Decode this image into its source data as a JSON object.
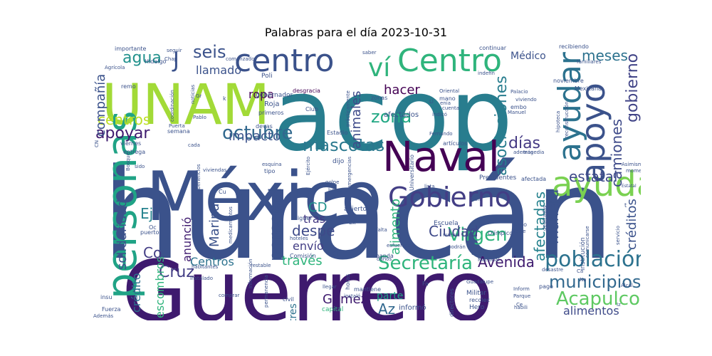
{
  "chart_data": {
    "type": "wordcloud",
    "title": "Palabras para el día 2023-10-31",
    "colormap": "viridis",
    "background": "#ffffff",
    "words": [
      {
        "text": "huracán",
        "weight": 1.0,
        "color": "#3b528b"
      },
      {
        "text": "acop",
        "weight": 0.85,
        "color": "#287d8e"
      },
      {
        "text": "Guerrero",
        "weight": 0.8,
        "color": "#3e1a6e"
      },
      {
        "text": "México",
        "weight": 0.72,
        "color": "#3b528b"
      },
      {
        "text": "UNAM",
        "weight": 0.7,
        "color": "#a2da37"
      },
      {
        "text": "personas",
        "weight": 0.55,
        "color": "#20a386"
      },
      {
        "text": "Naval",
        "weight": 0.5,
        "color": "#440154"
      },
      {
        "text": "centro",
        "weight": 0.48,
        "color": "#3b528b"
      },
      {
        "text": "Centro",
        "weight": 0.48,
        "color": "#2fb47c"
      },
      {
        "text": "ayuda",
        "weight": 0.46,
        "color": "#7ad151"
      },
      {
        "text": "ayudar",
        "weight": 0.44,
        "color": "#2c728e"
      },
      {
        "text": "apoyo",
        "weight": 0.42,
        "color": "#3b528b"
      },
      {
        "text": "Gobierno",
        "weight": 0.38,
        "color": "#433e85"
      },
      {
        "text": "ví",
        "weight": 0.36,
        "color": "#2fb47c"
      },
      {
        "text": "población",
        "weight": 0.3,
        "color": "#2c728e"
      },
      {
        "text": "Acapulco",
        "weight": 0.28,
        "color": "#5ec962"
      },
      {
        "text": "municipios",
        "weight": 0.26,
        "color": "#31688e"
      },
      {
        "text": "Secretaría",
        "weight": 0.25,
        "color": "#2fb47c"
      },
      {
        "text": "zona",
        "weight": 0.25,
        "color": "#22a884"
      },
      {
        "text": "asociaciones",
        "weight": 0.23,
        "color": "#287d8e"
      },
      {
        "text": "mascotas",
        "weight": 0.25,
        "color": "#2a788e"
      },
      {
        "text": "octubre",
        "weight": 0.24,
        "color": "#31688e"
      },
      {
        "text": "Virgen",
        "weight": 0.24,
        "color": "#2fb47c"
      },
      {
        "text": "personal",
        "weight": 0.23,
        "color": "#3b528b"
      },
      {
        "text": "gobierno",
        "weight": 0.22,
        "color": "#414487"
      },
      {
        "text": "agua",
        "weight": 0.22,
        "color": "#21918c"
      },
      {
        "text": "seis",
        "weight": 0.2,
        "color": "#3b528b"
      },
      {
        "text": "días",
        "weight": 0.2,
        "color": "#443983"
      },
      {
        "text": "apoyar",
        "weight": 0.2,
        "color": "#3e1a6e"
      },
      {
        "text": "afectadas",
        "weight": 0.2,
        "color": "#26828e"
      },
      {
        "text": "estatal",
        "weight": 0.19,
        "color": "#3e4a89"
      },
      {
        "text": "Ciudad",
        "weight": 0.19,
        "color": "#3e4989"
      },
      {
        "text": "Cruz",
        "weight": 0.19,
        "color": "#433e85"
      },
      {
        "text": "impacto",
        "weight": 0.18,
        "color": "#3b528b"
      },
      {
        "text": "camiones",
        "weight": 0.18,
        "color": "#3e4a89"
      },
      {
        "text": "Avenida",
        "weight": 0.18,
        "color": "#3e1a6e"
      },
      {
        "text": "centros",
        "weight": 0.18,
        "color": "#bddf26"
      },
      {
        "text": "manera",
        "weight": 0.18,
        "color": "#3b528b"
      },
      {
        "text": "alimento",
        "weight": 0.17,
        "color": "#2fb47c"
      },
      {
        "text": "toneladas",
        "weight": 0.17,
        "color": "#3b528b"
      },
      {
        "text": "hacer",
        "weight": 0.17,
        "color": "#440154"
      },
      {
        "text": "meses",
        "weight": 0.17,
        "color": "#2c728e"
      },
      {
        "text": "despe",
        "weight": 0.17,
        "color": "#3e4a89"
      },
      {
        "text": "Gómez",
        "weight": 0.16,
        "color": "#3e1a6e"
      },
      {
        "text": "Az",
        "weight": 0.16,
        "color": "#31688e"
      },
      {
        "text": "compañía",
        "weight": 0.15,
        "color": "#3b528b"
      },
      {
        "text": "Marina",
        "weight": 0.15,
        "color": "#3b528b"
      },
      {
        "text": "solidaridad",
        "weight": 0.15,
        "color": "#3b528b"
      },
      {
        "text": "créditos",
        "weight": 0.15,
        "color": "#3b528b"
      },
      {
        "text": "animales",
        "weight": 0.15,
        "color": "#3e4a89"
      },
      {
        "text": "alimentos",
        "weight": 0.15,
        "color": "#3e4a89"
      },
      {
        "text": "través",
        "weight": 0.15,
        "color": "#2fb47c"
      },
      {
        "text": "crédito",
        "weight": 0.14,
        "color": "#2c728e"
      },
      {
        "text": "escombros",
        "weight": 0.14,
        "color": "#2fb47c"
      },
      {
        "text": "Centros",
        "weight": 0.14,
        "color": "#2c728e"
      },
      {
        "text": "envío",
        "weight": 0.14,
        "color": "#433e85"
      },
      {
        "text": "tras",
        "weight": 0.14,
        "color": "#443983"
      },
      {
        "text": "ropa",
        "weight": 0.14,
        "color": "#440154"
      },
      {
        "text": "llamado",
        "weight": 0.14,
        "color": "#3b528b"
      },
      {
        "text": "anunció",
        "weight": 0.13,
        "color": "#3e1a6e"
      },
      {
        "text": "Médico",
        "weight": 0.12,
        "color": "#3b528b"
      },
      {
        "text": "tres",
        "weight": 0.12,
        "color": "#2c728e"
      },
      {
        "text": "parte",
        "weight": 0.12,
        "color": "#20a386"
      },
      {
        "text": "CD",
        "weight": 0.15,
        "color": "#21918c"
      },
      {
        "text": "Co",
        "weight": 0.16,
        "color": "#433e85"
      },
      {
        "text": "Ej",
        "weight": 0.15,
        "color": "#26828e"
      },
      {
        "text": "J",
        "weight": 0.22,
        "color": "#3b528b"
      },
      {
        "text": "institución",
        "weight": 0.1,
        "color": "#3b528b"
      },
      {
        "text": "Mexicana",
        "weight": 0.08,
        "color": "#3b528b"
      },
      {
        "text": "noviembre",
        "weight": 0.08,
        "color": "#3b528b"
      },
      {
        "text": "afectados",
        "weight": 0.08,
        "color": "#3b528b"
      },
      {
        "text": "Poli",
        "weight": 0.08,
        "color": "#3b528b"
      },
      {
        "text": "Roja",
        "weight": 0.08,
        "color": "#3b528b"
      },
      {
        "text": "gobernador",
        "weight": 0.07,
        "color": "#3b528b"
      },
      {
        "text": "desgracia",
        "weight": 0.07,
        "color": "#440154"
      },
      {
        "text": "primeros",
        "weight": 0.07,
        "color": "#3b528b"
      },
      {
        "text": "Estadio",
        "weight": 0.07,
        "color": "#3b528b"
      },
      {
        "text": "semana",
        "weight": 0.07,
        "color": "#3b528b"
      },
      {
        "text": "importante",
        "weight": 0.07,
        "color": "#3b528b"
      },
      {
        "text": "Hidalgo",
        "weight": 0.06,
        "color": "#3b528b"
      },
      {
        "text": "dijo",
        "weight": 0.07,
        "color": "#3b528b"
      },
      {
        "text": "tipo",
        "weight": 0.07,
        "color": "#3b528b"
      },
      {
        "text": "viviendas",
        "weight": 0.06,
        "color": "#3b528b"
      },
      {
        "text": "entrega",
        "weight": 0.06,
        "color": "#3b528b"
      },
      {
        "text": "viernes",
        "weight": 0.07,
        "color": "#3b528b"
      },
      {
        "text": "puerto",
        "weight": 0.06,
        "color": "#3b528b"
      },
      {
        "text": "Escuela",
        "weight": 0.07,
        "color": "#3b528b"
      },
      {
        "text": "abierto",
        "weight": 0.07,
        "color": "#3b528b"
      },
      {
        "text": "Presidentes",
        "weight": 0.07,
        "color": "#3b528b"
      },
      {
        "text": "Comisión",
        "weight": 0.06,
        "color": "#3b528b"
      },
      {
        "text": "manda",
        "weight": 0.06,
        "color": "#3b528b"
      },
      {
        "text": "mantiene",
        "weight": 0.06,
        "color": "#3b528b"
      },
      {
        "text": "informó",
        "weight": 0.07,
        "color": "#3b528b"
      },
      {
        "text": "capital",
        "weight": 0.06,
        "color": "#2fb47c"
      },
      {
        "text": "Militar",
        "weight": 0.06,
        "color": "#3b528b"
      },
      {
        "text": "Hero",
        "weight": 0.06,
        "color": "#3b528b"
      },
      {
        "text": "civil",
        "weight": 0.06,
        "color": "#3b528b"
      },
      {
        "text": "pago",
        "weight": 0.06,
        "color": "#3b528b"
      },
      {
        "text": "desastre",
        "weight": 0.06,
        "color": "#3b528b"
      },
      {
        "text": "paso",
        "weight": 0.06,
        "color": "#3b528b"
      },
      {
        "text": "embo",
        "weight": 0.06,
        "color": "#3b528b"
      },
      {
        "text": "tragedia",
        "weight": 0.05,
        "color": "#3b528b"
      },
      {
        "text": "Fernando",
        "weight": 0.05,
        "color": "#3b528b"
      },
      {
        "text": "artículos",
        "weight": 0.06,
        "color": "#3b528b"
      },
      {
        "text": "además",
        "weight": 0.05,
        "color": "#3b528b"
      },
      {
        "text": "Oriental",
        "weight": 0.05,
        "color": "#3b528b"
      },
      {
        "text": "indicó",
        "weight": 0.05,
        "color": "#3b528b"
      },
      {
        "text": "Manuel",
        "weight": 0.05,
        "color": "#3b528b"
      },
      {
        "text": "mano",
        "weight": 0.06,
        "color": "#3b528b"
      },
      {
        "text": "zonas",
        "weight": 0.06,
        "color": "#3b528b"
      },
      {
        "text": "Club",
        "weight": 0.05,
        "color": "#3b528b"
      },
      {
        "text": "recibiendo",
        "weight": 0.06,
        "color": "#3b528b"
      },
      {
        "text": "familiares",
        "weight": 0.05,
        "color": "#3b528b"
      },
      {
        "text": "Olímpico",
        "weight": 0.05,
        "color": "#3b528b"
      },
      {
        "text": "instaló",
        "weight": 0.05,
        "color": "#3b528b"
      },
      {
        "text": "nuevo",
        "weight": 0.05,
        "color": "#3b528b"
      },
      {
        "text": "golpe",
        "weight": 0.05,
        "color": "#3b528b"
      },
      {
        "text": "llegar",
        "weight": 0.05,
        "color": "#3b528b"
      },
      {
        "text": "directores",
        "weight": 0.05,
        "color": "#3b528b"
      },
      {
        "text": "Guadalupe",
        "weight": 0.05,
        "color": "#3b528b"
      },
      {
        "text": "Inform",
        "weight": 0.05,
        "color": "#3b528b"
      },
      {
        "text": "Parque",
        "weight": 0.05,
        "color": "#3b528b"
      },
      {
        "text": "Alcal",
        "weight": 0.05,
        "color": "#3b528b"
      },
      {
        "text": "momento",
        "weight": 0.05,
        "color": "#3b528b"
      },
      {
        "text": "Asimismo",
        "weight": 0.05,
        "color": "#3b528b"
      },
      {
        "text": "servicio",
        "weight": 0.05,
        "color": "#3b528b"
      },
      {
        "text": "comunicarse",
        "weight": 0.05,
        "color": "#3b528b"
      },
      {
        "text": "Estatal",
        "weight": 0.05,
        "color": "#3b528b"
      },
      {
        "text": "hipoteca",
        "weight": 0.05,
        "color": "#3b528b"
      },
      {
        "text": "reconstrucción",
        "weight": 0.05,
        "color": "#3b528b"
      },
      {
        "text": "Palacio",
        "weight": 0.05,
        "color": "#3b528b"
      },
      {
        "text": "viviendo",
        "weight": 0.05,
        "color": "#3b528b"
      },
      {
        "text": "continuar",
        "weight": 0.05,
        "color": "#3b528b"
      },
      {
        "text": "Nacional",
        "weight": 0.05,
        "color": "#3b528b"
      },
      {
        "text": "saber",
        "weight": 0.05,
        "color": "#3b528b"
      },
      {
        "text": "comenzado",
        "weight": 0.05,
        "color": "#3b528b"
      },
      {
        "text": "seguir",
        "weight": 0.05,
        "color": "#3b528b"
      },
      {
        "text": "Chap",
        "weight": 0.05,
        "color": "#3b528b"
      },
      {
        "text": "Agrícola",
        "weight": 0.05,
        "color": "#3b528b"
      },
      {
        "text": "remo",
        "weight": 0.05,
        "color": "#3b528b"
      },
      {
        "text": "noticias",
        "weight": 0.05,
        "color": "#3b528b"
      },
      {
        "text": "coordinación",
        "weight": 0.05,
        "color": "#3b528b"
      },
      {
        "text": "Pablo",
        "weight": 0.05,
        "color": "#3b528b"
      },
      {
        "text": "Puerta",
        "weight": 0.05,
        "color": "#3b528b"
      },
      {
        "text": "cada",
        "weight": 0.05,
        "color": "#3b528b"
      },
      {
        "text": "devas",
        "weight": 0.05,
        "color": "#3b528b"
      },
      {
        "text": "esquina",
        "weight": 0.05,
        "color": "#3b528b"
      },
      {
        "text": "Ejército",
        "weight": 0.05,
        "color": "#3b528b"
      },
      {
        "text": "beneficios",
        "weight": 0.05,
        "color": "#3b528b"
      },
      {
        "text": "sido",
        "weight": 0.05,
        "color": "#3b528b"
      },
      {
        "text": "Bosque",
        "weight": 0.05,
        "color": "#3b528b"
      },
      {
        "text": "Miguel",
        "weight": 0.05,
        "color": "#3b528b"
      },
      {
        "text": "Universitario",
        "weight": 0.05,
        "color": "#3b528b"
      },
      {
        "text": "hoteles",
        "weight": 0.05,
        "color": "#3b528b"
      },
      {
        "text": "falta",
        "weight": 0.05,
        "color": "#3b528b"
      },
      {
        "text": "esfuerzos",
        "weight": 0.05,
        "color": "#3b528b"
      },
      {
        "text": "daños",
        "weight": 0.05,
        "color": "#3b528b"
      },
      {
        "text": "horas",
        "weight": 0.05,
        "color": "#3b528b"
      },
      {
        "text": "restable",
        "weight": 0.05,
        "color": "#3b528b"
      },
      {
        "text": "habitantes",
        "weight": 0.05,
        "color": "#3b528b"
      },
      {
        "text": "instalado",
        "weight": 0.05,
        "color": "#3b528b"
      },
      {
        "text": "información",
        "weight": 0.05,
        "color": "#3b528b"
      },
      {
        "text": "permanencia",
        "weight": 0.05,
        "color": "#3b528b"
      },
      {
        "text": "Fuerza",
        "weight": 0.05,
        "color": "#3b528b"
      },
      {
        "text": "Además",
        "weight": 0.05,
        "color": "#3b528b"
      },
      {
        "text": "insu",
        "weight": 0.05,
        "color": "#3b528b"
      },
      {
        "text": "comprar",
        "weight": 0.05,
        "color": "#3b528b"
      },
      {
        "text": "recolec",
        "weight": 0.05,
        "color": "#3b528b"
      },
      {
        "text": "habili",
        "weight": 0.05,
        "color": "#3b528b"
      },
      {
        "text": "ciudad",
        "weight": 0.05,
        "color": "#3b528b"
      },
      {
        "text": "Norte",
        "weight": 0.05,
        "color": "#3b528b"
      },
      {
        "text": "cuenta",
        "weight": 0.05,
        "color": "#3b528b"
      },
      {
        "text": "prácticamente",
        "weight": 0.05,
        "color": "#3b528b"
      },
      {
        "text": "emergencias",
        "weight": 0.05,
        "color": "#3b528b"
      },
      {
        "text": "dedicadas",
        "weight": 0.05,
        "color": "#3b528b"
      },
      {
        "text": "afectada",
        "weight": 0.05,
        "color": "#3b528b"
      },
      {
        "text": "lista",
        "weight": 0.05,
        "color": "#3b528b"
      },
      {
        "text": "lunes",
        "weight": 0.05,
        "color": "#3b528b"
      },
      {
        "text": "Plan",
        "weight": 0.05,
        "color": "#3b528b"
      },
      {
        "text": "podrán",
        "weight": 0.05,
        "color": "#3b528b"
      },
      {
        "text": "medicamentos",
        "weight": 0.05,
        "color": "#3b528b"
      },
      {
        "text": "indefin",
        "weight": 0.05,
        "color": "#3b528b"
      },
      {
        "text": "Cu",
        "weight": 0.05,
        "color": "#3b528b"
      },
      {
        "text": "Oc",
        "weight": 0.05,
        "color": "#3b528b"
      },
      {
        "text": "Ex",
        "weight": 0.05,
        "color": "#3b528b"
      },
      {
        "text": "Fa",
        "weight": 0.05,
        "color": "#3b528b"
      },
      {
        "text": "CL",
        "weight": 0.05,
        "color": "#3b528b"
      },
      {
        "text": "CN",
        "weight": 0.05,
        "color": "#3b528b"
      },
      {
        "text": "Ce",
        "weight": 0.05,
        "color": "#3b528b"
      },
      {
        "text": "Iz",
        "weight": 0.05,
        "color": "#3b528b"
      },
      {
        "text": "Ll",
        "weight": 0.05,
        "color": "#3b528b"
      },
      {
        "text": "t",
        "weight": 0.05,
        "color": "#3b528b"
      },
      {
        "text": "k",
        "weight": 0.05,
        "color": "#3b528b"
      },
      {
        "text": "Ca",
        "weight": 0.05,
        "color": "#3b528b"
      },
      {
        "text": "Gr",
        "weight": 0.05,
        "color": "#3b528b"
      },
      {
        "text": "Na",
        "weight": 0.05,
        "color": "#3b528b"
      },
      {
        "text": "enia",
        "weight": 0.05,
        "color": "#3b528b"
      }
    ]
  }
}
